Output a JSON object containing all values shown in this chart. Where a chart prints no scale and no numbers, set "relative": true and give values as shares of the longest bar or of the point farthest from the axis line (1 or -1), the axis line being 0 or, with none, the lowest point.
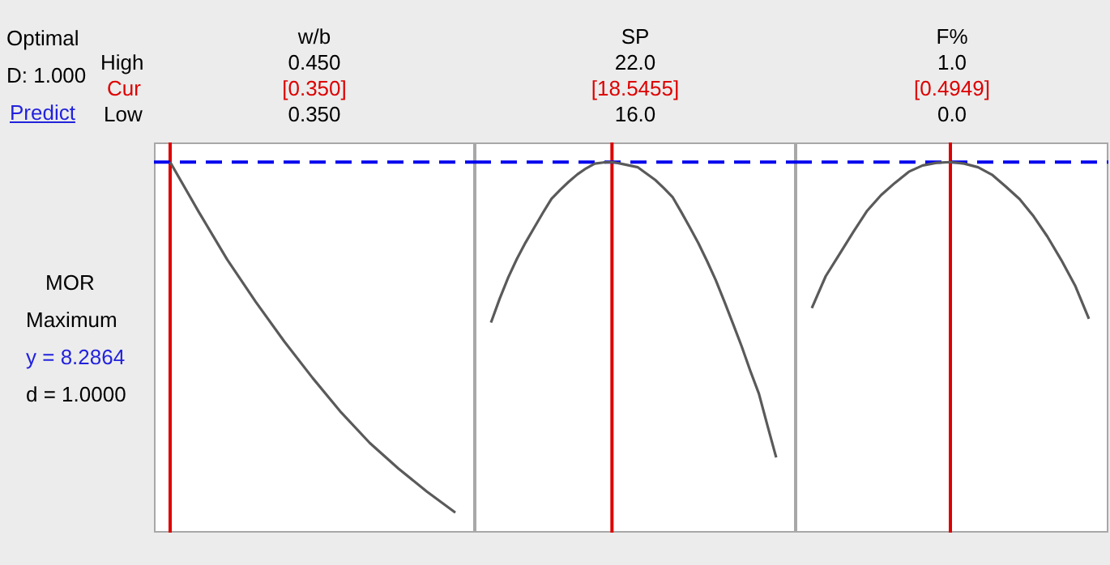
{
  "chart_data": [
    {
      "type": "other",
      "annotations": [
        "Optimal",
        "D: 1.000",
        "Predict",
        "High",
        "Cur",
        "Low",
        "MOR",
        "Maximum",
        "y = 8.2864",
        "d = 1.0000"
      ]
    },
    {
      "type": "line",
      "title": "w/b",
      "relative": true,
      "marker": "none",
      "color": "#5a5a5a",
      "categories": [
        null,
        null,
        null,
        null,
        null,
        null,
        null,
        null,
        null,
        null,
        null
      ],
      "values": [
        1,
        0.866,
        0.737,
        0.623,
        0.516,
        0.417,
        0.324,
        0.242,
        0.173,
        0.111,
        0.054
      ],
      "annotations": [
        "0.450",
        "0.350"
      ],
      "ref_lines": [
        {
          "axis": "x",
          "label": "[0.350]",
          "color": "#dd0000"
        },
        {
          "axis": "y",
          "value": 1,
          "color": "#0000ee",
          "line_style": "dashed"
        }
      ]
    },
    {
      "type": "line",
      "title": "SP",
      "relative": true,
      "marker": "none",
      "color": "#5a5a5a",
      "categories": [
        null,
        null,
        null,
        null,
        null,
        null,
        null,
        null,
        null,
        null,
        null,
        null,
        null,
        null,
        null,
        null,
        null,
        null,
        null,
        null,
        null,
        null,
        null,
        null,
        null,
        null,
        null,
        null,
        null,
        null,
        null,
        null,
        null,
        null
      ],
      "values": [
        0.567,
        0.631,
        0.689,
        0.739,
        0.783,
        0.823,
        0.863,
        0.901,
        0.925,
        0.947,
        0.967,
        0.983,
        0.996,
        0.999,
        1,
        0.996,
        0.991,
        0.986,
        0.969,
        0.952,
        0.93,
        0.906,
        0.866,
        0.824,
        0.781,
        0.733,
        0.682,
        0.624,
        0.564,
        0.503,
        0.437,
        0.375,
        0.288,
        0.203
      ],
      "annotations": [
        "22.0",
        "16.0"
      ],
      "ref_lines": [
        {
          "axis": "x",
          "label": "[18.5455]",
          "color": "#dd0000"
        },
        {
          "axis": "y",
          "value": 1,
          "color": "#0000ee",
          "line_style": "dashed"
        }
      ]
    },
    {
      "type": "line",
      "title": "F%",
      "relative": true,
      "marker": "none",
      "color": "#5a5a5a",
      "categories": [
        null,
        null,
        null,
        null,
        null,
        null,
        null,
        null,
        null,
        null,
        null,
        null,
        null,
        null,
        null,
        null,
        null,
        null,
        null,
        null,
        null
      ],
      "values": [
        0.606,
        0.692,
        0.752,
        0.812,
        0.869,
        0.911,
        0.944,
        0.974,
        0.991,
        0.998,
        1,
        0.996,
        0.986,
        0.966,
        0.934,
        0.9,
        0.854,
        0.799,
        0.736,
        0.667,
        0.577
      ],
      "annotations": [
        "1.0",
        "0.0"
      ],
      "ref_lines": [
        {
          "axis": "x",
          "label": "[0.4949]",
          "color": "#dd0000"
        },
        {
          "axis": "y",
          "value": 1,
          "color": "#0000ee",
          "line_style": "dashed"
        }
      ]
    }
  ]
}
